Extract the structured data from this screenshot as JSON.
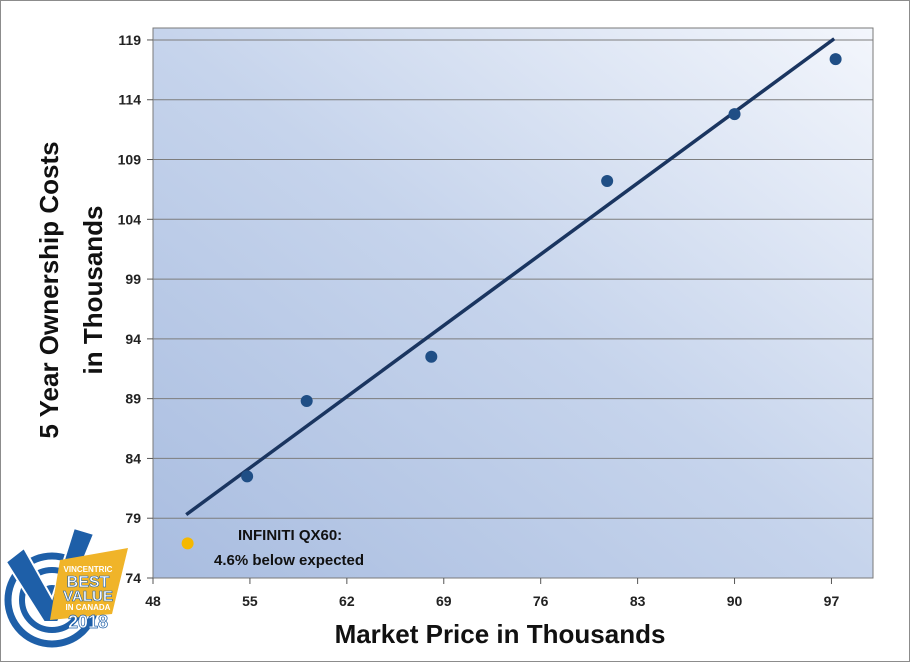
{
  "chart_data": {
    "type": "scatter",
    "title": "",
    "xlabel": "Market Price in Thousands",
    "ylabel_line1": "5 Year Ownership Costs",
    "ylabel_line2": "in Thousands",
    "xlim": [
      48,
      100
    ],
    "ylim": [
      74,
      120
    ],
    "x_ticks": [
      48,
      55,
      62,
      69,
      76,
      83,
      90,
      97
    ],
    "y_ticks": [
      74,
      79,
      84,
      89,
      94,
      99,
      104,
      109,
      114,
      119
    ],
    "grid": "horizontal",
    "series": [
      {
        "color": "#1f4e85",
        "points": [
          {
            "x": 54.8,
            "y": 82.5
          },
          {
            "x": 59.1,
            "y": 88.8
          },
          {
            "x": 68.1,
            "y": 92.5
          },
          {
            "x": 80.8,
            "y": 107.2
          },
          {
            "x": 90.0,
            "y": 112.8
          },
          {
            "x": 97.3,
            "y": 117.4
          }
        ]
      },
      {
        "color": "#f5b800",
        "points": [
          {
            "x": 50.5,
            "y": 76.9
          }
        ]
      }
    ],
    "trendline": {
      "color": "#1a3560",
      "from": {
        "x": 50.4,
        "y": 79.3
      },
      "to": {
        "x": 97.2,
        "y": 119.1
      }
    },
    "annotation": {
      "line1": "INFINITI QX60:",
      "line2": "4.6% below expected"
    }
  },
  "badge": {
    "brand": "VINCENTRIC",
    "line1": "BEST",
    "line2": "VALUE",
    "line3": "IN CANADA",
    "year": "2018"
  }
}
